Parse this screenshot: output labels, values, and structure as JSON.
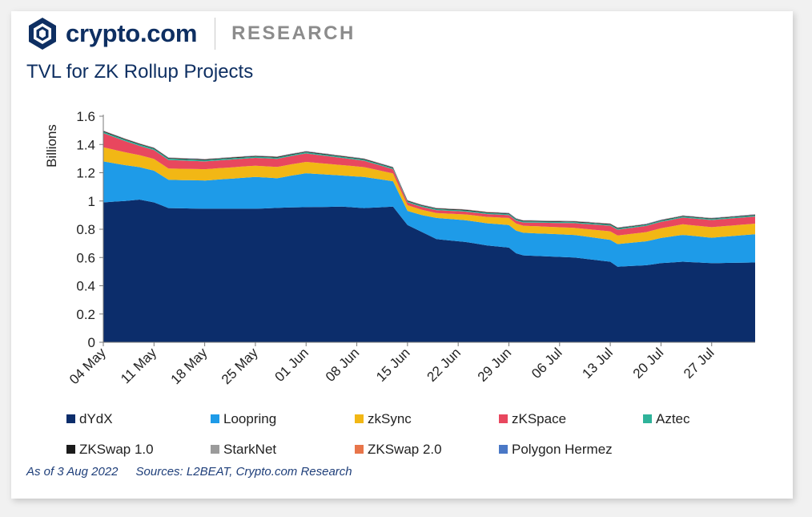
{
  "brand": {
    "wordmark": "crypto.com",
    "section": "RESEARCH",
    "logo_icon": "crypto-com-shield-icon"
  },
  "title": "TVL for ZK Rollup Projects",
  "footer": {
    "as_of": "As of 3 Aug 2022",
    "sources": "Sources:  L2BEAT, Crypto.com Research"
  },
  "chart_data": {
    "type": "area",
    "stacked": true,
    "ylabel": "Billions",
    "ylim": [
      0,
      1.6
    ],
    "yticks": [
      "0",
      "0.2",
      "0.4",
      "0.6",
      "0.8",
      "1",
      "1.2",
      "1.4",
      "1.6"
    ],
    "ytick_values": [
      0,
      0.2,
      0.4,
      0.6,
      0.8,
      1.0,
      1.2,
      1.4,
      1.6
    ],
    "x_tick_labels": [
      "04 May",
      "11 May",
      "18 May",
      "25 May",
      "01 Jun",
      "08 Jun",
      "15 Jun",
      "22 Jun",
      "29 Jun",
      "06 Jul",
      "13 Jul",
      "20 Jul",
      "27 Jul"
    ],
    "x_tick_index": [
      0,
      7,
      14,
      21,
      28,
      35,
      42,
      49,
      56,
      63,
      70,
      77,
      84
    ],
    "x_start": "04 May 2022",
    "x_end": "02 Aug 2022",
    "points": 91,
    "legend_position": "bottom",
    "grid": false,
    "series": [
      {
        "name": "dYdX",
        "color": "#0c2d6b",
        "anchors": [
          [
            0,
            0.99
          ],
          [
            3,
            1.0
          ],
          [
            5,
            1.01
          ],
          [
            7,
            0.99
          ],
          [
            9,
            0.95
          ],
          [
            14,
            0.945
          ],
          [
            21,
            0.945
          ],
          [
            26,
            0.955
          ],
          [
            33,
            0.96
          ],
          [
            36,
            0.95
          ],
          [
            40,
            0.96
          ],
          [
            42,
            0.83
          ],
          [
            44,
            0.78
          ],
          [
            46,
            0.73
          ],
          [
            50,
            0.71
          ],
          [
            53,
            0.685
          ],
          [
            56,
            0.67
          ],
          [
            57,
            0.63
          ],
          [
            58,
            0.615
          ],
          [
            65,
            0.6
          ],
          [
            70,
            0.57
          ],
          [
            71,
            0.535
          ],
          [
            75,
            0.545
          ],
          [
            77,
            0.56
          ],
          [
            80,
            0.57
          ],
          [
            84,
            0.56
          ],
          [
            90,
            0.565
          ]
        ]
      },
      {
        "name": "Loopring",
        "color": "#1e9be8",
        "anchors": [
          [
            0,
            0.29
          ],
          [
            5,
            0.23
          ],
          [
            7,
            0.225
          ],
          [
            9,
            0.2
          ],
          [
            14,
            0.2
          ],
          [
            21,
            0.225
          ],
          [
            24,
            0.21
          ],
          [
            28,
            0.24
          ],
          [
            33,
            0.22
          ],
          [
            36,
            0.22
          ],
          [
            40,
            0.18
          ],
          [
            41,
            0.14
          ],
          [
            42,
            0.1
          ],
          [
            44,
            0.12
          ],
          [
            46,
            0.15
          ],
          [
            56,
            0.16
          ],
          [
            57,
            0.16
          ],
          [
            65,
            0.16
          ],
          [
            70,
            0.155
          ],
          [
            71,
            0.16
          ],
          [
            75,
            0.17
          ],
          [
            80,
            0.19
          ],
          [
            84,
            0.18
          ],
          [
            90,
            0.2
          ]
        ]
      },
      {
        "name": "zkSync",
        "color": "#f2b715",
        "anchors": [
          [
            0,
            0.1
          ],
          [
            5,
            0.085
          ],
          [
            9,
            0.08
          ],
          [
            14,
            0.08
          ],
          [
            21,
            0.08
          ],
          [
            28,
            0.08
          ],
          [
            36,
            0.07
          ],
          [
            40,
            0.055
          ],
          [
            42,
            0.04
          ],
          [
            46,
            0.035
          ],
          [
            56,
            0.05
          ],
          [
            65,
            0.05
          ],
          [
            70,
            0.06
          ],
          [
            75,
            0.065
          ],
          [
            80,
            0.075
          ],
          [
            84,
            0.075
          ],
          [
            90,
            0.075
          ]
        ]
      },
      {
        "name": "zKSpace",
        "color": "#e8475e",
        "anchors": [
          [
            0,
            0.1
          ],
          [
            5,
            0.065
          ],
          [
            9,
            0.06
          ],
          [
            14,
            0.055
          ],
          [
            21,
            0.055
          ],
          [
            28,
            0.06
          ],
          [
            36,
            0.045
          ],
          [
            40,
            0.03
          ],
          [
            42,
            0.02
          ],
          [
            46,
            0.02
          ],
          [
            56,
            0.02
          ],
          [
            63,
            0.03
          ],
          [
            70,
            0.04
          ],
          [
            77,
            0.045
          ],
          [
            84,
            0.05
          ],
          [
            90,
            0.05
          ]
        ]
      },
      {
        "name": "Aztec",
        "color": "#2fb39a",
        "anchors": [
          [
            0,
            0.01
          ],
          [
            40,
            0.008
          ],
          [
            56,
            0.008
          ],
          [
            90,
            0.008
          ]
        ]
      },
      {
        "name": "ZKSwap 1.0",
        "color": "#1b1b1b",
        "anchors": [
          [
            0,
            0.005
          ],
          [
            90,
            0.004
          ]
        ]
      },
      {
        "name": "StarkNet",
        "color": "#9b9b9b",
        "anchors": [
          [
            0,
            0.002
          ],
          [
            90,
            0.002
          ]
        ]
      },
      {
        "name": "ZKSwap 2.0",
        "color": "#e8754a",
        "anchors": [
          [
            0,
            0.001
          ],
          [
            90,
            0.001
          ]
        ]
      },
      {
        "name": "Polygon Hermez",
        "color": "#4a78c6",
        "anchors": [
          [
            0,
            0.001
          ],
          [
            90,
            0.001
          ]
        ]
      }
    ]
  }
}
